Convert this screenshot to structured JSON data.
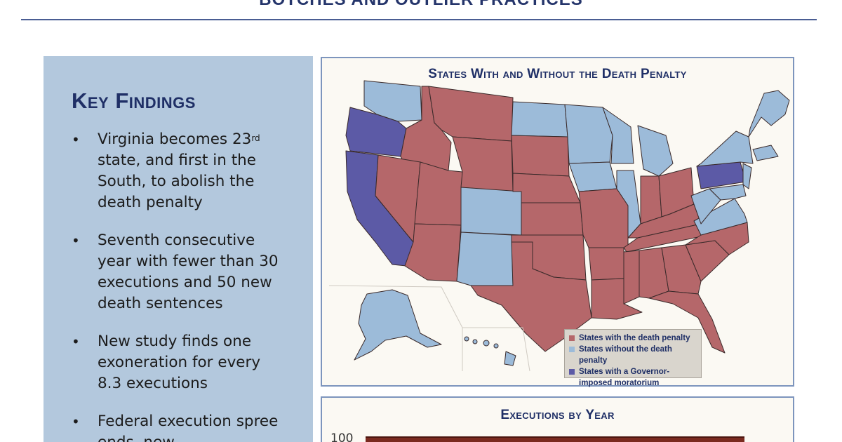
{
  "header": {
    "title": "BOTCHES AND OUTLIER PRACTICES"
  },
  "key_findings": {
    "heading": "Key Findings",
    "bullet": "•",
    "items": [
      {
        "text_pre": "Virginia becomes 23",
        "sup": "rd",
        "text_post": "state, and first in the South, to abolish the death penalty"
      },
      {
        "text": "Seventh consecutive year with fewer than 30 executions and 50 new death sentences"
      },
      {
        "text": "New study finds one exoneration for every 8.3 executions"
      },
      {
        "text": "Federal execution spree ends, new"
      }
    ]
  },
  "map": {
    "title": "States With and Without the Death Penalty",
    "colors": {
      "death_penalty": "#b5676a",
      "no_death_penalty": "#9cbbd9",
      "moratorium": "#5c5aa6",
      "border": "#3a2a2a"
    },
    "legend": [
      {
        "label": "States with the death penalty",
        "color": "#b5676a"
      },
      {
        "label": "States without the death penalty",
        "color": "#9cbbd9"
      },
      {
        "label": "States with a Governor-imposed moratorium",
        "color": "#5c5aa6"
      }
    ]
  },
  "executions_chart": {
    "title": "Executions by Year",
    "y_tick_top": "100"
  }
}
